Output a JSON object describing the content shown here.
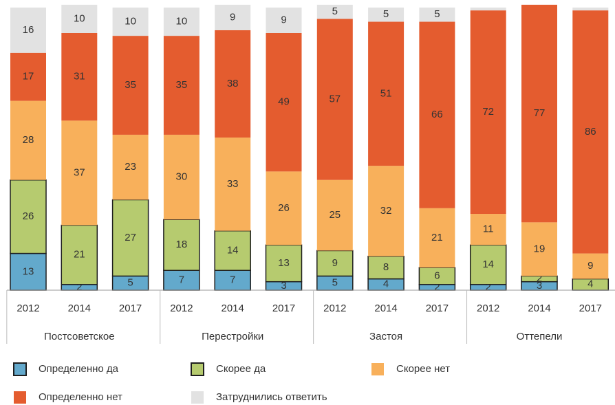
{
  "chart_data": {
    "type": "stacked_bar",
    "categories": [
      "2012",
      "2014",
      "2017",
      "2012",
      "2014",
      "2017",
      "2012",
      "2014",
      "2017",
      "2012",
      "2014",
      "2017"
    ],
    "groups": [
      "Постсоветское",
      "Перестройки",
      "Застоя",
      "Оттепели"
    ],
    "series": [
      {
        "name": "Определенно да",
        "color": "#63a9cc",
        "outline": true,
        "values": [
          13,
          2,
          5,
          7,
          7,
          3,
          5,
          4,
          2,
          2,
          3,
          0
        ],
        "value_labels": [
          "13",
          "2",
          "5",
          "7",
          "7",
          "3",
          "5",
          "4",
          "2",
          "2",
          "3",
          null
        ]
      },
      {
        "name": "Скорее да",
        "color": "#b6cb6f",
        "outline": true,
        "values": [
          26,
          21,
          27,
          18,
          14,
          13,
          9,
          8,
          6,
          14,
          2,
          4
        ]
      },
      {
        "name": "Скорее нет",
        "color": "#f8b05b",
        "outline": false,
        "values": [
          28,
          37,
          23,
          30,
          33,
          26,
          25,
          32,
          21,
          11,
          19,
          9
        ]
      },
      {
        "name": "Определенно нет",
        "color": "#e45c2f",
        "outline": false,
        "values": [
          17,
          31,
          35,
          35,
          38,
          49,
          57,
          51,
          66,
          72,
          77,
          86
        ]
      },
      {
        "name": "Затруднились ответить",
        "color": "#e2e2e2",
        "outline": false,
        "values": [
          16,
          10,
          10,
          10,
          9,
          9,
          5,
          5,
          5,
          1,
          0,
          1
        ],
        "value_labels": [
          "16",
          "10",
          "10",
          "10",
          "9",
          "9",
          "5",
          "5",
          "5",
          null,
          null,
          null
        ]
      }
    ]
  }
}
